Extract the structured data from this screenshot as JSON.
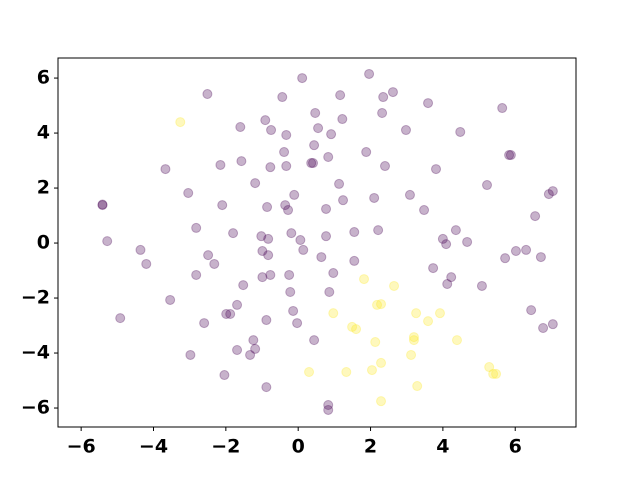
{
  "chart_data": {
    "type": "scatter",
    "xlim": [
      -6.64,
      7.68
    ],
    "ylim": [
      -6.69,
      6.73
    ],
    "xticks": [
      {
        "value": -6,
        "label": "−6"
      },
      {
        "value": -4,
        "label": "−4"
      },
      {
        "value": -2,
        "label": "−2"
      },
      0,
      2,
      4,
      6
    ],
    "yticks": [
      {
        "value": -6,
        "label": "−6"
      },
      {
        "value": -4,
        "label": "−4"
      },
      {
        "value": -2,
        "label": "−2"
      },
      0,
      2,
      4,
      6
    ],
    "grid": false,
    "alpha": 0.3,
    "series": [
      {
        "color": "#440154",
        "x": [
          -5.41,
          -5.41,
          -5.28,
          -4.92,
          -4.36,
          -4.2,
          -3.67,
          -3.54,
          -3.04,
          -2.98,
          -2.82,
          -2.82,
          -2.6,
          -2.51,
          -2.49,
          -2.32,
          -2.15,
          -2.1,
          -2.04,
          -1.99,
          -1.88,
          -1.8,
          -1.69,
          -1.69,
          -1.6,
          -1.57,
          -1.52,
          -1.33,
          -1.24,
          -1.19,
          -1.19,
          -1.02,
          -0.99,
          -0.99,
          -0.91,
          -0.88,
          -0.88,
          -0.86,
          -0.83,
          -0.83,
          -0.77,
          -0.75,
          -0.77,
          -0.44,
          -0.39,
          -0.36,
          -0.33,
          -0.33,
          -0.28,
          -0.25,
          -0.22,
          -0.19,
          -0.14,
          -0.11,
          -0.03,
          0.06,
          0.11,
          0.14,
          0.36,
          0.41,
          0.44,
          0.44,
          0.47,
          0.55,
          0.64,
          0.77,
          0.77,
          0.83,
          0.83,
          0.86,
          0.83,
          0.91,
          0.97,
          1.13,
          1.16,
          1.22,
          1.24,
          1.55,
          1.55,
          1.88,
          1.96,
          2.1,
          2.21,
          2.32,
          2.35,
          2.4,
          2.62,
          2.98,
          3.09,
          3.48,
          3.59,
          3.73,
          3.81,
          4.0,
          4.09,
          4.12,
          4.23,
          4.36,
          4.48,
          4.67,
          5.08,
          5.22,
          5.64,
          5.72,
          5.83,
          5.88,
          6.02,
          6.3,
          6.44,
          6.55,
          6.71,
          6.77,
          6.93,
          7.04,
          7.04
        ],
        "y": [
          1.38,
          1.4,
          0.07,
          -2.73,
          -0.25,
          -0.76,
          2.69,
          -2.07,
          1.82,
          -4.07,
          0.55,
          -1.16,
          -2.91,
          5.42,
          -0.44,
          -0.76,
          2.84,
          1.38,
          -4.8,
          -2.58,
          -2.58,
          0.36,
          -2.25,
          -3.89,
          4.22,
          2.98,
          -1.53,
          -4.07,
          -3.53,
          -3.85,
          2.18,
          0.25,
          -0.29,
          -1.24,
          4.47,
          -5.24,
          -2.8,
          1.31,
          0.15,
          -0.44,
          -1.16,
          4.11,
          2.76,
          5.31,
          3.31,
          1.38,
          2.8,
          3.93,
          1.2,
          -1.16,
          -1.78,
          0.36,
          -2.47,
          1.75,
          -2.91,
          0.11,
          6.0,
          -0.25,
          2.91,
          2.91,
          3.56,
          -3.53,
          4.73,
          4.18,
          -0.51,
          0.25,
          1.24,
          3.13,
          -5.89,
          -1.78,
          -6.07,
          3.96,
          -1.09,
          2.15,
          5.38,
          4.51,
          1.56,
          0.4,
          -0.65,
          3.31,
          6.15,
          1.64,
          0.47,
          4.73,
          5.31,
          2.8,
          5.49,
          4.11,
          1.75,
          1.2,
          5.09,
          -0.91,
          2.69,
          0.15,
          -0.04,
          -1.49,
          -1.24,
          0.47,
          4.04,
          0.04,
          -1.56,
          2.11,
          4.91,
          -0.55,
          3.2,
          3.2,
          -0.29,
          -0.25,
          -2.44,
          0.98,
          -0.51,
          -3.09,
          1.78,
          1.89,
          -2.95
        ]
      },
      {
        "color": "#fde725",
        "x": [
          -3.26,
          0.3,
          0.97,
          1.33,
          1.49,
          1.6,
          1.82,
          2.04,
          2.13,
          2.18,
          2.29,
          2.29,
          2.29,
          2.65,
          3.12,
          3.2,
          3.2,
          3.26,
          3.29,
          3.59,
          3.92,
          4.39,
          5.28,
          5.39,
          5.47
        ],
        "y": [
          4.4,
          -4.69,
          -2.55,
          -4.69,
          -3.05,
          -3.13,
          -1.31,
          -4.62,
          -3.6,
          -2.25,
          -2.22,
          -4.36,
          -5.75,
          -1.56,
          -4.07,
          -3.42,
          -3.53,
          -2.55,
          -5.2,
          -2.84,
          -2.55,
          -3.53,
          -4.51,
          -4.76,
          -4.76
        ]
      }
    ]
  }
}
